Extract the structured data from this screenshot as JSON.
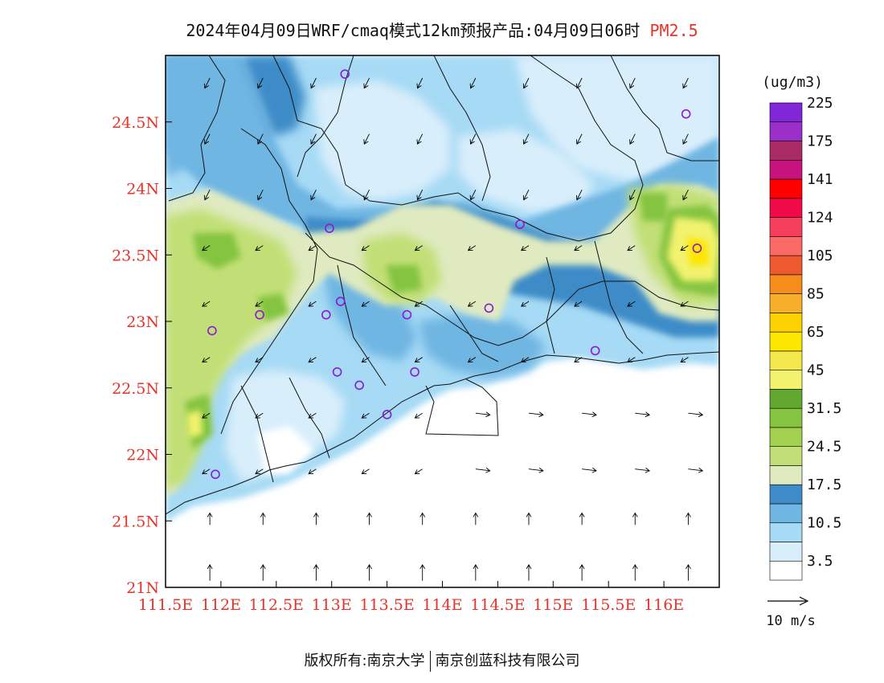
{
  "title": {
    "main": "2024年04月09日WRF/cmaq模式12km预报产品:04月09日06时",
    "variable": "PM2.5"
  },
  "map": {
    "lon_range": [
      111.5,
      116.5
    ],
    "lat_range": [
      21,
      25
    ],
    "x_ticks": [
      "111.5E",
      "112E",
      "112.5E",
      "113E",
      "113.5E",
      "114E",
      "114.5E",
      "115E",
      "115.5E",
      "116E"
    ],
    "y_ticks": [
      "21N",
      "21.5N",
      "22N",
      "22.5N",
      "23N",
      "23.5N",
      "24N",
      "24.5N"
    ],
    "axis_label_color": "#e8332a",
    "stations": [
      {
        "lon": 113.12,
        "lat": 24.86
      },
      {
        "lon": 116.2,
        "lat": 24.56
      },
      {
        "lon": 112.98,
        "lat": 23.7
      },
      {
        "lon": 114.7,
        "lat": 23.73
      },
      {
        "lon": 116.3,
        "lat": 23.55
      },
      {
        "lon": 112.35,
        "lat": 23.05
      },
      {
        "lon": 111.92,
        "lat": 22.93
      },
      {
        "lon": 113.08,
        "lat": 23.15
      },
      {
        "lon": 112.95,
        "lat": 23.05
      },
      {
        "lon": 113.68,
        "lat": 23.05
      },
      {
        "lon": 114.42,
        "lat": 23.1
      },
      {
        "lon": 115.38,
        "lat": 22.78
      },
      {
        "lon": 113.05,
        "lat": 22.62
      },
      {
        "lon": 113.25,
        "lat": 22.52
      },
      {
        "lon": 113.75,
        "lat": 22.62
      },
      {
        "lon": 113.5,
        "lat": 22.3
      },
      {
        "lon": 111.95,
        "lat": 21.85
      }
    ]
  },
  "legend": {
    "unit": "(ug/m3)",
    "colors": [
      "#ffffff",
      "#d9eefb",
      "#a6daf5",
      "#6fb6e3",
      "#3d8cc8",
      "#dfeac0",
      "#c1df76",
      "#a3d04f",
      "#84c440",
      "#62a830",
      "#f2f26e",
      "#f5e84c",
      "#fde600",
      "#fdd000",
      "#f7ae2a",
      "#f68c1c",
      "#ee5a2e",
      "#fb6a64",
      "#f43e5c",
      "#f00b48",
      "#fe0000",
      "#c6137e",
      "#a82b63",
      "#9b2fc7",
      "#8126d8"
    ],
    "labels": [
      "3.5",
      "10.5",
      "17.5",
      "24.5",
      "31.5",
      "45",
      "65",
      "85",
      "105",
      "124",
      "141",
      "175",
      "225"
    ],
    "wind_ref": "10 m/s"
  },
  "footer": {
    "left": "版权所有:南京大学",
    "right": "南京创蓝科技有限公司"
  }
}
